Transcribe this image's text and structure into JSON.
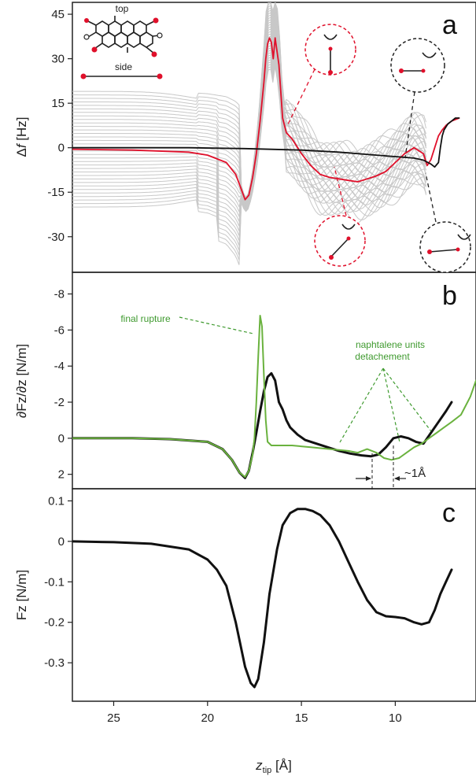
{
  "figure": {
    "x_axis": {
      "label_main": "z",
      "label_sub": "tip",
      "label_unit": " [Å]",
      "ticks": [
        25,
        20,
        15,
        10
      ],
      "lim": [
        27.2,
        5.7
      ]
    }
  },
  "chart_data": [
    {
      "id": "a",
      "type": "line",
      "panel_letter": "a",
      "ylabel_prefix": "Δ",
      "ylabel_italic": "f",
      "ylabel_suffix": " [Hz]",
      "ylim": [
        -42,
        49
      ],
      "yticks": [
        45,
        30,
        15,
        0,
        -15,
        -30
      ],
      "inset_labels": {
        "top": "top",
        "side": "side"
      },
      "gray_family": {
        "count": 34,
        "plateau_min": -20,
        "plateau_max": 19,
        "peak_max": 49,
        "color": "#c8c8c8"
      },
      "series": [
        {
          "name": "red",
          "color": "#e0102b",
          "x": [
            27.2,
            24,
            21,
            20,
            19,
            18.5,
            18.2,
            18.0,
            17.8,
            17.6,
            17.4,
            17.2,
            17.0,
            16.9,
            16.8,
            16.7,
            16.6,
            16.5,
            16.4,
            16.2,
            16.0,
            15.8,
            15.5,
            15.0,
            14.5,
            14.0,
            13.5,
            13.0,
            12.5,
            12.0,
            11.5,
            11.0,
            10.5,
            10.0,
            9.5,
            9.0,
            8.5,
            8.3,
            8.1,
            7.9,
            7.7,
            7.5,
            7.3,
            7.1,
            7.0,
            6.8,
            6.6
          ],
          "y": [
            -0.5,
            -0.8,
            -1.5,
            -2.5,
            -5,
            -9,
            -14,
            -17.5,
            -16,
            -10,
            -2,
            9,
            22,
            30,
            35,
            37,
            35.5,
            30,
            37,
            28,
            10,
            5,
            3,
            -2,
            -6,
            -9,
            -10,
            -10.5,
            -11,
            -11.5,
            -10.5,
            -9.5,
            -8,
            -5,
            -2,
            0,
            -2,
            -6,
            -4,
            0,
            4,
            6,
            7.5,
            8.5,
            9,
            9.5,
            10
          ]
        },
        {
          "name": "black",
          "color": "#111111",
          "x": [
            27.2,
            24,
            21,
            18,
            15,
            13,
            11,
            10,
            9,
            8.5,
            8.1,
            7.9,
            7.7,
            7.6,
            7.5,
            7.4,
            7.3,
            7.2,
            7.0,
            6.8,
            6.6
          ],
          "y": [
            0,
            0,
            0,
            -0.3,
            -0.8,
            -1.5,
            -2.5,
            -3,
            -3.5,
            -4.2,
            -5.5,
            -6.5,
            -5,
            0,
            4,
            6,
            7,
            8,
            9,
            10,
            10
          ]
        }
      ]
    },
    {
      "id": "b",
      "type": "line",
      "panel_letter": "b",
      "ylabel": "∂Fz/∂z [N/m]",
      "ylim": [
        2.8,
        -9.2
      ],
      "yticks": [
        -8,
        -6,
        -4,
        -2,
        0,
        2
      ],
      "annotations": [
        "final rupture",
        "naphtalene units",
        "detachement",
        "~1Å"
      ],
      "series": [
        {
          "name": "black",
          "color": "#111111",
          "x": [
            27.2,
            24,
            22,
            20,
            19.2,
            18.7,
            18.3,
            18.0,
            17.8,
            17.6,
            17.4,
            17.2,
            17.0,
            16.8,
            16.6,
            16.4,
            16.2,
            16.0,
            15.8,
            15.6,
            15.2,
            14.8,
            14.2,
            13.6,
            13.0,
            12.4,
            11.8,
            11.3,
            10.9,
            10.5,
            10.1,
            9.7,
            9.3,
            8.9,
            8.5,
            8.1,
            7.7,
            7.3,
            7.0
          ],
          "y": [
            0,
            0,
            0.05,
            0.2,
            0.6,
            1.2,
            1.9,
            2.2,
            1.8,
            0.8,
            -0.3,
            -1.5,
            -2.6,
            -3.4,
            -3.6,
            -3.2,
            -2.0,
            -1.6,
            -1.0,
            -0.6,
            -0.2,
            0.1,
            0.3,
            0.5,
            0.7,
            0.85,
            0.95,
            1.0,
            0.9,
            0.5,
            0.0,
            -0.1,
            0.0,
            0.2,
            0.3,
            -0.3,
            -0.9,
            -1.5,
            -2.0
          ]
        },
        {
          "name": "green",
          "color": "#6ab23e",
          "x": [
            27.2,
            24,
            22,
            20,
            19.2,
            18.7,
            18.3,
            18.0,
            17.8,
            17.6,
            17.5,
            17.4,
            17.3,
            17.2,
            17.1,
            17.0,
            16.9,
            16.8,
            16.6,
            16.2,
            15.5,
            14.5,
            13.5,
            12.5,
            12.0,
            11.5,
            11.0,
            10.6,
            10.2,
            9.8,
            9.4,
            9.0,
            8.6,
            8.2,
            7.8,
            7.4,
            7.0,
            6.5,
            6.0,
            5.7
          ],
          "y": [
            0,
            0,
            0.05,
            0.2,
            0.6,
            1.2,
            1.9,
            2.15,
            1.8,
            0.9,
            0.0,
            -2.0,
            -4.5,
            -6.8,
            -6.2,
            -3.5,
            -1.0,
            0.2,
            0.4,
            0.4,
            0.4,
            0.5,
            0.6,
            0.7,
            0.8,
            0.6,
            0.8,
            1.1,
            1.2,
            1.1,
            0.8,
            0.5,
            0.3,
            0.0,
            -0.3,
            -0.6,
            -0.9,
            -1.3,
            -2.3,
            -3.2
          ]
        }
      ]
    },
    {
      "id": "c",
      "type": "line",
      "panel_letter": "c",
      "ylabel": "Fz [N/m]",
      "ylim": [
        -0.395,
        0.13
      ],
      "yticks": [
        0.1,
        0,
        -0.1,
        -0.2,
        -0.3
      ],
      "ytick_labels": [
        "0.1",
        "0",
        "-0.1",
        "-0.2",
        "-0.3"
      ],
      "series": [
        {
          "name": "black",
          "color": "#111111",
          "x": [
            27.2,
            25,
            23,
            21,
            20,
            19.5,
            19.0,
            18.5,
            18.0,
            17.7,
            17.5,
            17.3,
            17.0,
            16.7,
            16.3,
            16.0,
            15.6,
            15.2,
            14.8,
            14.4,
            14.0,
            13.5,
            13.0,
            12.5,
            12.0,
            11.5,
            11.0,
            10.5,
            10.0,
            9.5,
            9.0,
            8.6,
            8.2,
            7.9,
            7.6,
            7.3,
            7.0
          ],
          "y": [
            0,
            -0.002,
            -0.006,
            -0.02,
            -0.045,
            -0.07,
            -0.11,
            -0.2,
            -0.31,
            -0.35,
            -0.36,
            -0.34,
            -0.25,
            -0.13,
            -0.02,
            0.04,
            0.07,
            0.08,
            0.08,
            0.075,
            0.065,
            0.04,
            0.0,
            -0.05,
            -0.1,
            -0.145,
            -0.175,
            -0.185,
            -0.187,
            -0.19,
            -0.2,
            -0.205,
            -0.2,
            -0.17,
            -0.13,
            -0.1,
            -0.07
          ]
        }
      ]
    }
  ]
}
